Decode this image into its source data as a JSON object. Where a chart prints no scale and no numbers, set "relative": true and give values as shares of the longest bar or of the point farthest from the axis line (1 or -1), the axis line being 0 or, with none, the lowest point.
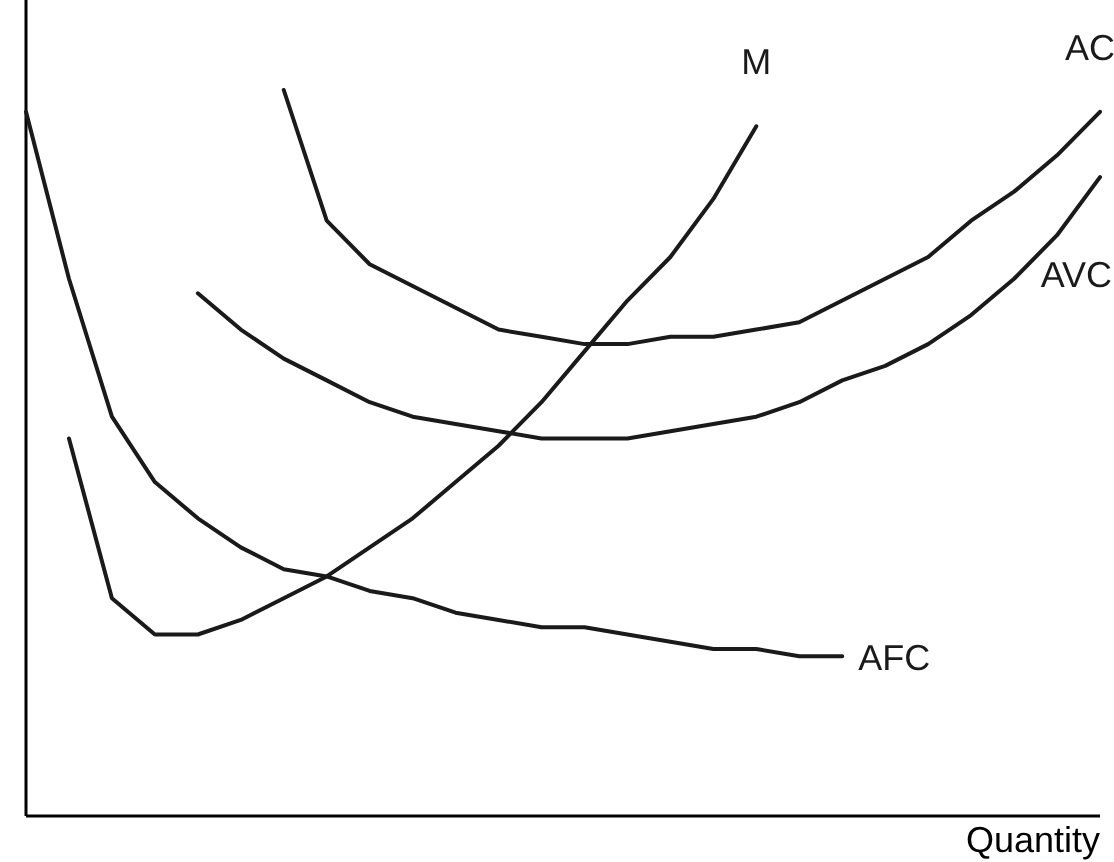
{
  "chart_data": {
    "type": "line",
    "relative": true,
    "xlabel": "Quantity",
    "marker": "none",
    "line_style": "solid",
    "categories": [
      null,
      null,
      null,
      null,
      null,
      null,
      null,
      null,
      null,
      null,
      null,
      null,
      null,
      null,
      null,
      null,
      null,
      null,
      null,
      null,
      null,
      null,
      null,
      null,
      null,
      null
    ],
    "series": [
      {
        "name": "M",
        "color": "#1a1a1a",
        "values": [
          null,
          0.52,
          0.3,
          0.25,
          0.25,
          0.27,
          0.3,
          0.33,
          0.37,
          0.41,
          0.46,
          0.51,
          0.57,
          0.64,
          0.71,
          0.77,
          0.85,
          0.95,
          null,
          null,
          null,
          null,
          null,
          null,
          null,
          null
        ]
      },
      {
        "name": "AC",
        "color": "#1a1a1a",
        "values": [
          null,
          null,
          null,
          null,
          null,
          null,
          1.0,
          0.82,
          0.76,
          0.73,
          0.7,
          0.67,
          0.66,
          0.65,
          0.65,
          0.66,
          0.66,
          0.67,
          0.68,
          0.71,
          0.74,
          0.77,
          0.82,
          0.86,
          0.91,
          0.97
        ]
      },
      {
        "name": "AVC",
        "color": "#1a1a1a",
        "values": [
          null,
          null,
          null,
          null,
          0.72,
          0.67,
          0.63,
          0.6,
          0.57,
          0.55,
          0.54,
          0.53,
          0.52,
          0.52,
          0.52,
          0.53,
          0.54,
          0.55,
          0.57,
          0.6,
          0.62,
          0.65,
          0.69,
          0.74,
          0.8,
          0.88
        ]
      },
      {
        "name": "AFC",
        "color": "#1a1a1a",
        "values": [
          0.97,
          0.74,
          0.55,
          0.46,
          0.41,
          0.37,
          0.34,
          0.33,
          0.31,
          0.3,
          0.28,
          0.27,
          0.26,
          0.26,
          0.25,
          0.24,
          0.23,
          0.23,
          0.22,
          0.22,
          null,
          null,
          null,
          null,
          null,
          null
        ]
      }
    ]
  }
}
